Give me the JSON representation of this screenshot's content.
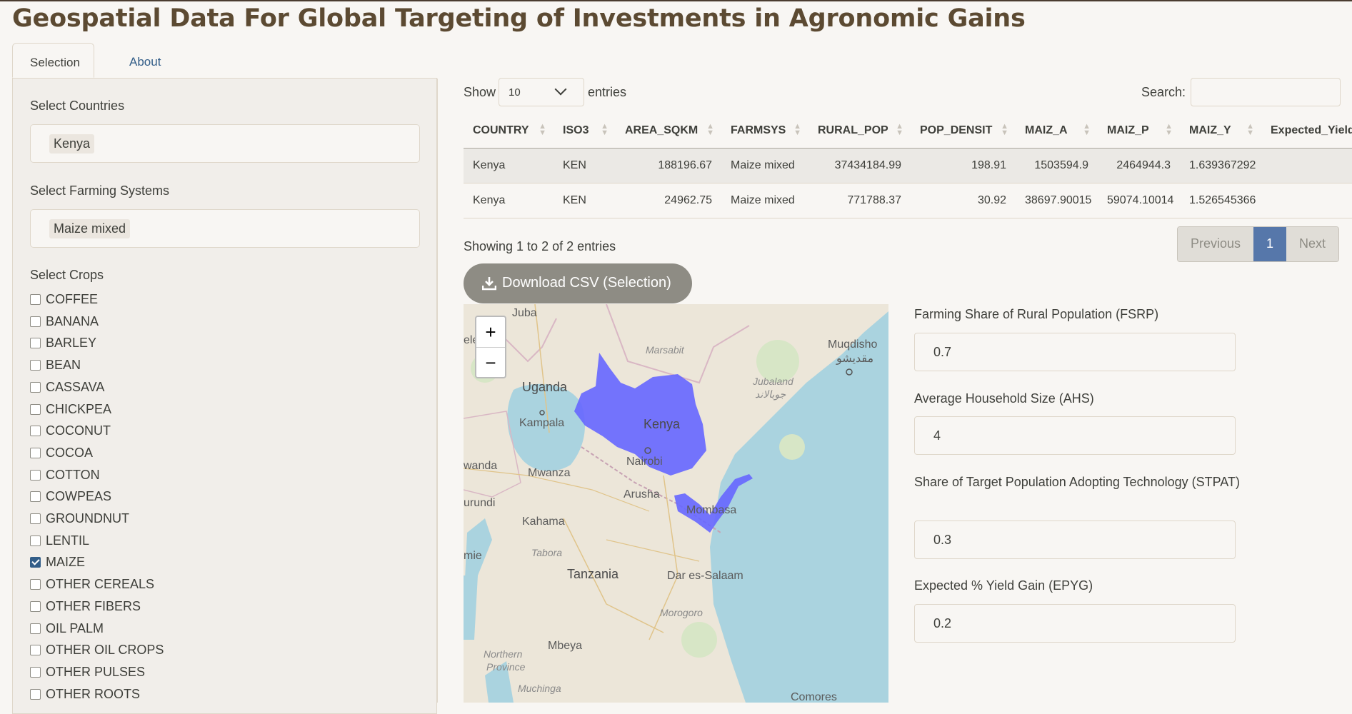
{
  "app": {
    "title": "Geospatial Data For Global Targeting of Investments in Agronomic Gains"
  },
  "tabs": [
    {
      "label": "Selection"
    },
    {
      "label": "About"
    }
  ],
  "sidebar": {
    "countries_label": "Select Countries",
    "countries_selected": "Kenya",
    "farming_label": "Select Farming Systems",
    "farming_selected": "Maize mixed",
    "crops_label": "Select Crops",
    "crops": [
      {
        "label": "COFFEE",
        "checked": false
      },
      {
        "label": "BANANA",
        "checked": false
      },
      {
        "label": "BARLEY",
        "checked": false
      },
      {
        "label": "BEAN",
        "checked": false
      },
      {
        "label": "CASSAVA",
        "checked": false
      },
      {
        "label": "CHICKPEA",
        "checked": false
      },
      {
        "label": "COCONUT",
        "checked": false
      },
      {
        "label": "COCOA",
        "checked": false
      },
      {
        "label": "COTTON",
        "checked": false
      },
      {
        "label": "COWPEAS",
        "checked": false
      },
      {
        "label": "GROUNDNUT",
        "checked": false
      },
      {
        "label": "LENTIL",
        "checked": false
      },
      {
        "label": "MAIZE",
        "checked": true
      },
      {
        "label": "OTHER CEREALS",
        "checked": false
      },
      {
        "label": "OTHER FIBERS",
        "checked": false
      },
      {
        "label": "OIL PALM",
        "checked": false
      },
      {
        "label": "OTHER OIL CROPS",
        "checked": false
      },
      {
        "label": "OTHER PULSES",
        "checked": false
      },
      {
        "label": "OTHER ROOTS",
        "checked": false
      }
    ]
  },
  "table": {
    "show_label": "Show",
    "entries_value": "10",
    "entries_label": "entries",
    "search_label": "Search:",
    "columns": [
      "COUNTRY",
      "ISO3",
      "AREA_SQKM",
      "FARMSYS",
      "RURAL_POP",
      "POP_DENSIT",
      "MAIZ_A",
      "MAIZ_P",
      "MAIZ_Y",
      "Expected_Yield"
    ],
    "rows": [
      [
        "Kenya",
        "KEN",
        "188196.67",
        "Maize mixed",
        "37434184.99",
        "198.91",
        "1503594.9",
        "2464944.3",
        "1.639367292",
        ""
      ],
      [
        "Kenya",
        "KEN",
        "24962.75",
        "Maize mixed",
        "771788.37",
        "30.92",
        "38697.90015",
        "59074.10014",
        "1.526545366",
        ""
      ]
    ],
    "info": "Showing 1 to 2 of 2 entries",
    "pagination": {
      "previous": "Previous",
      "current": "1",
      "next": "Next"
    }
  },
  "download_button": "Download CSV (Selection)",
  "map": {
    "zoom_in": "+",
    "zoom_out": "−",
    "labels": {
      "juba": "Juba",
      "ele": "ele",
      "marsabit": "Marsabit",
      "muqdisho": "Muqdisho",
      "muqdisho_ar": "مقديشو",
      "jubaland": "Jubaland",
      "jubaland_ar": "جوبالاند",
      "uganda": "Uganda",
      "kampala": "Kampala",
      "kenya": "Kenya",
      "nairobi": "Nairobi",
      "wanda": "wanda",
      "mwanza": "Mwanza",
      "arusha": "Arusha",
      "mombasa": "Mombasa",
      "urundi": "urundi",
      "kahama": "Kahama",
      "tabora": "Tabora",
      "mie": "mie",
      "tanzania": "Tanzania",
      "dar": "Dar es-Salaam",
      "morogoro": "Morogoro",
      "mbeya": "Mbeya",
      "northern": "Northern",
      "province": "Province",
      "muchinga": "Muchinga",
      "comores": "Comores"
    }
  },
  "params": {
    "fsrp_label": "Farming Share of Rural Population (FSRP)",
    "fsrp_value": "0.7",
    "ahs_label": "Average Household Size (AHS)",
    "ahs_value": "4",
    "stpat_label": "Share of Target Population Adopting Technology (STPAT)",
    "stpat_value": "0.3",
    "epyg_label": "Expected % Yield Gain (EPYG)",
    "epyg_value": "0.2"
  },
  "colors": {
    "accent": "#325d88",
    "button": "#8e8c84",
    "highlight": "#6666ff",
    "title": "#5c4a32"
  }
}
